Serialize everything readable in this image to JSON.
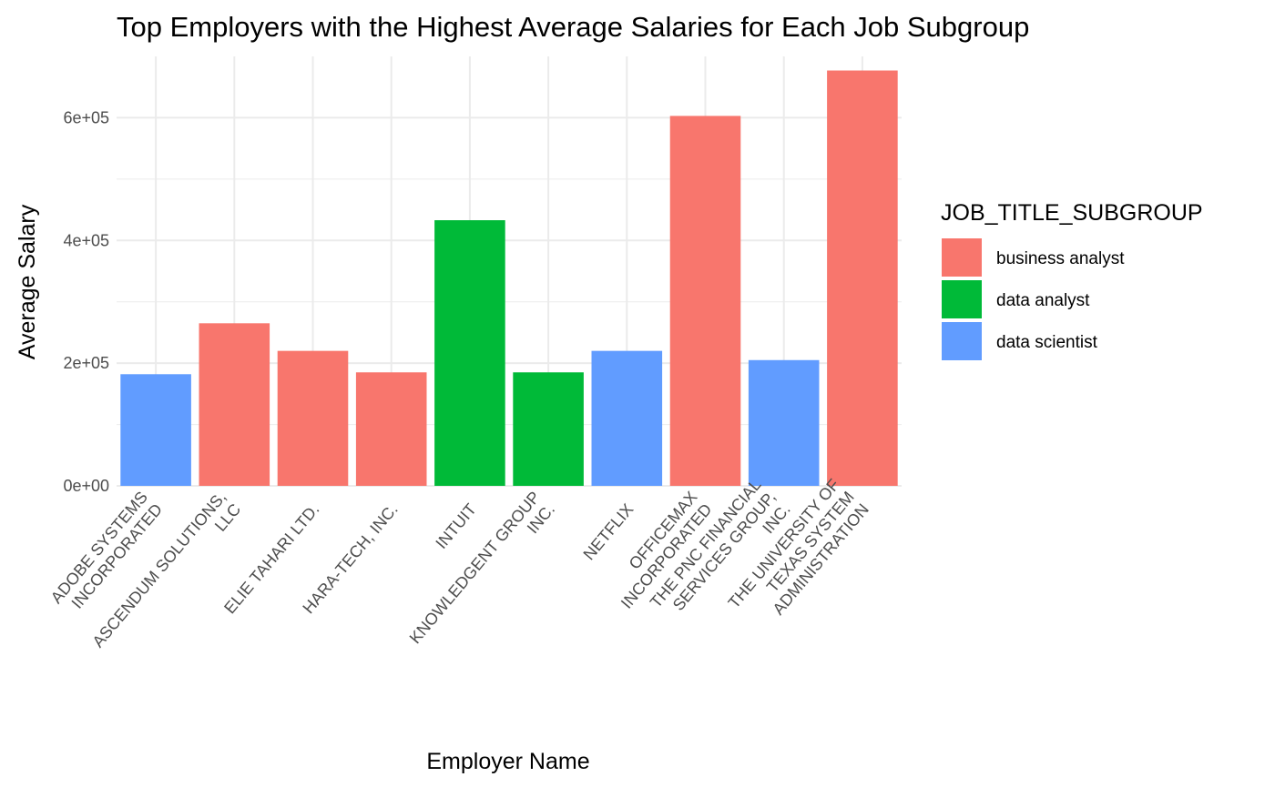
{
  "chart_data": {
    "type": "bar",
    "title": "Top Employers with the Highest Average Salaries for Each Job Subgroup",
    "xlabel": "Employer Name",
    "ylabel": "Average Salary",
    "ylim": [
      0,
      700000
    ],
    "y_ticks": [
      {
        "value": 0,
        "label": "0e+00"
      },
      {
        "value": 200000,
        "label": "2e+05"
      },
      {
        "value": 400000,
        "label": "4e+05"
      },
      {
        "value": 600000,
        "label": "6e+05"
      }
    ],
    "grid": true,
    "legend_position": "right",
    "legend_title": "JOB_TITLE_SUBGROUP",
    "groups": [
      {
        "name": "business analyst",
        "color": "#F8766D"
      },
      {
        "name": "data analyst",
        "color": "#00BA38"
      },
      {
        "name": "data scientist",
        "color": "#619CFF"
      }
    ],
    "bars": [
      {
        "category": "ADOBE SYSTEMS\nINCORPORATED",
        "group": "data scientist",
        "value": 182000
      },
      {
        "category": "ASCENDUM SOLUTIONS,\nLLC",
        "group": "business analyst",
        "value": 265000
      },
      {
        "category": "ELIE TAHARI LTD.",
        "group": "business analyst",
        "value": 220000
      },
      {
        "category": "HARA-TECH, INC.",
        "group": "business analyst",
        "value": 185000
      },
      {
        "category": "INTUIT",
        "group": "data analyst",
        "value": 433000
      },
      {
        "category": "KNOWLEDGENT GROUP\nINC.",
        "group": "data analyst",
        "value": 185000
      },
      {
        "category": "NETFLIX",
        "group": "data scientist",
        "value": 220000
      },
      {
        "category": "OFFICEMAX\nINCORPORATED",
        "group": "business analyst",
        "value": 603000
      },
      {
        "category": "THE PNC FINANCIAL\nSERVICES GROUP,\nINC.",
        "group": "data scientist",
        "value": 205000
      },
      {
        "category": "THE UNIVERSITY OF\nTEXAS SYSTEM\nADMINISTRATION",
        "group": "business analyst",
        "value": 677000
      }
    ]
  }
}
